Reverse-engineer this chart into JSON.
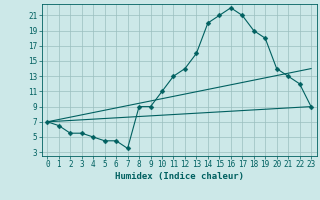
{
  "xlabel": "Humidex (Indice chaleur)",
  "bg_color": "#cce8e8",
  "grid_color": "#9bbfbf",
  "line_color": "#006060",
  "xlim": [
    -0.5,
    23.5
  ],
  "ylim": [
    2.5,
    22.5
  ],
  "yticks": [
    3,
    5,
    7,
    9,
    11,
    13,
    15,
    17,
    19,
    21
  ],
  "xticks": [
    0,
    1,
    2,
    3,
    4,
    5,
    6,
    7,
    8,
    9,
    10,
    11,
    12,
    13,
    14,
    15,
    16,
    17,
    18,
    19,
    20,
    21,
    22,
    23
  ],
  "curve1_x": [
    0,
    1,
    2,
    3,
    4,
    5,
    6,
    7,
    8,
    9,
    10,
    11,
    12,
    13,
    14,
    15,
    16,
    17,
    18,
    19,
    20,
    21,
    22,
    23
  ],
  "curve1_y": [
    7,
    6.5,
    5.5,
    5.5,
    5,
    4.5,
    4.5,
    3.5,
    9,
    9,
    11,
    13,
    14,
    16,
    20,
    21,
    22,
    21,
    19,
    18,
    14,
    13,
    12,
    9
  ],
  "curve2_x": [
    0,
    23
  ],
  "curve2_y": [
    7,
    14
  ],
  "curve3_x": [
    0,
    23
  ],
  "curve3_y": [
    7,
    9
  ],
  "marker": "D",
  "marker_size": 2.5,
  "font_size_label": 6.5,
  "font_size_tick": 5.5
}
